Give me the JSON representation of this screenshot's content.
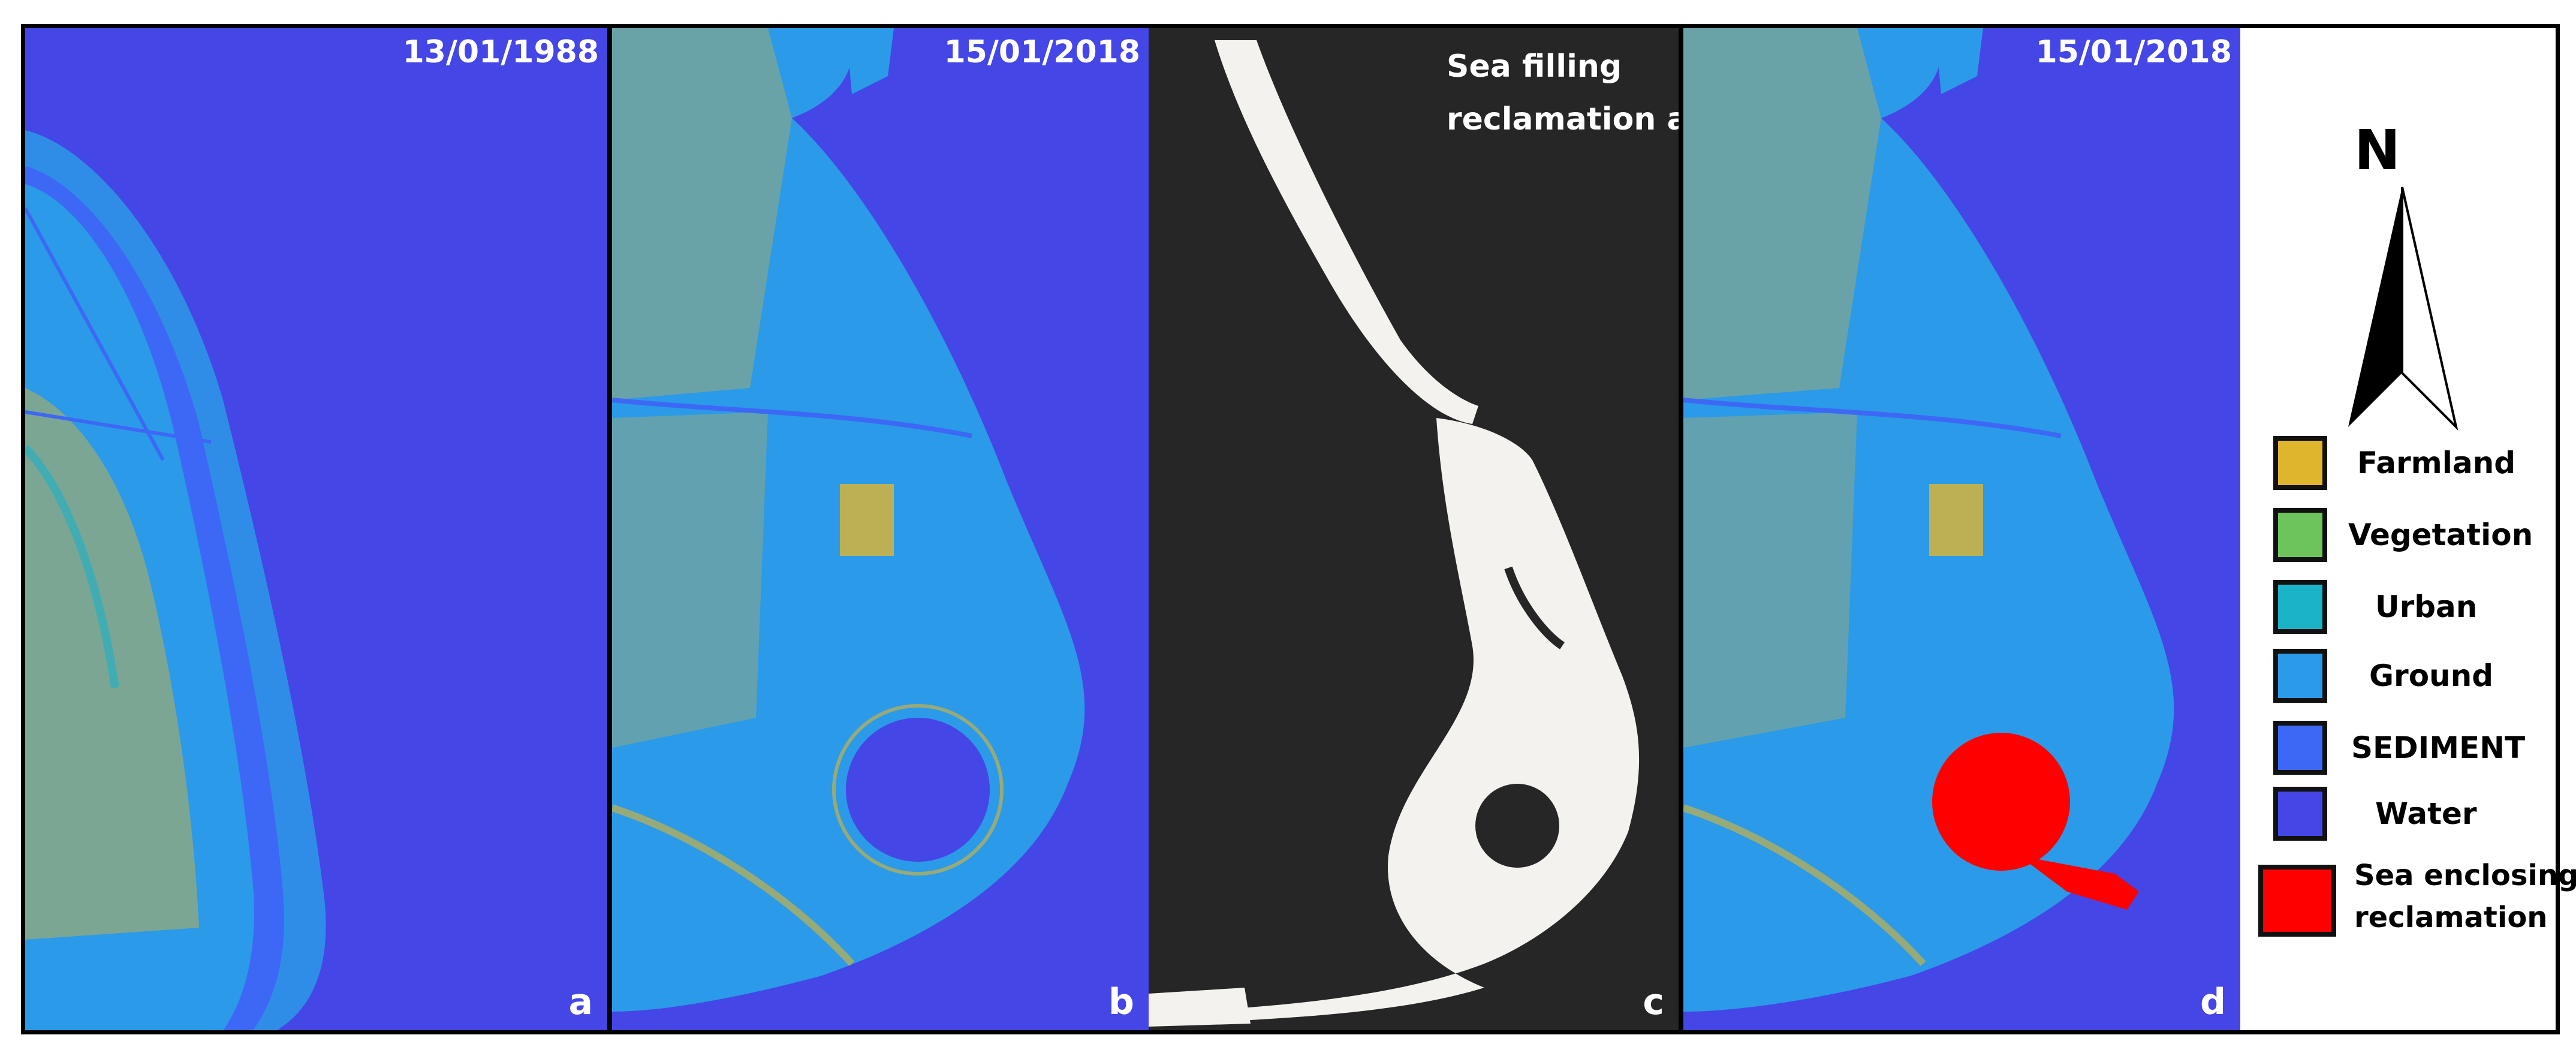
{
  "panels": [
    {
      "id": "a",
      "date": "13/01/1988",
      "letter": "a",
      "title_lines": []
    },
    {
      "id": "b",
      "date": "15/01/2018",
      "letter": "b",
      "title_lines": []
    },
    {
      "id": "c",
      "date": "",
      "letter": "c",
      "title_lines": [
        "Sea filling",
        "reclamation area"
      ]
    },
    {
      "id": "d",
      "date": "15/01/2018",
      "letter": "d",
      "title_lines": []
    }
  ],
  "north_arrow": {
    "label": "N",
    "icon": "north-arrow-icon"
  },
  "legend": {
    "items": [
      {
        "label": "Farmland",
        "color": "#e0b52e"
      },
      {
        "label": "Vegetation",
        "color": "#6ec45c"
      },
      {
        "label": "Urban",
        "color": "#1bb3c8"
      },
      {
        "label": "Ground",
        "color": "#2b9ae8"
      },
      {
        "label": "SEDIMENT",
        "color": "#3d68f5"
      },
      {
        "label": "Water",
        "color": "#4446e6"
      },
      {
        "label_lines": [
          "Sea enclosing",
          "reclamation"
        ],
        "color": "#ff0000"
      }
    ]
  },
  "colors": {
    "water": "#4446e6",
    "ground": "#2b9ae8",
    "urban": "#1bb3c8",
    "farmland": "#e0b52e",
    "sediment": "#3d68f5",
    "reclamation": "#ff0000",
    "panel_c_bg": "#262626",
    "panel_c_fill": "#f4f2ee"
  }
}
